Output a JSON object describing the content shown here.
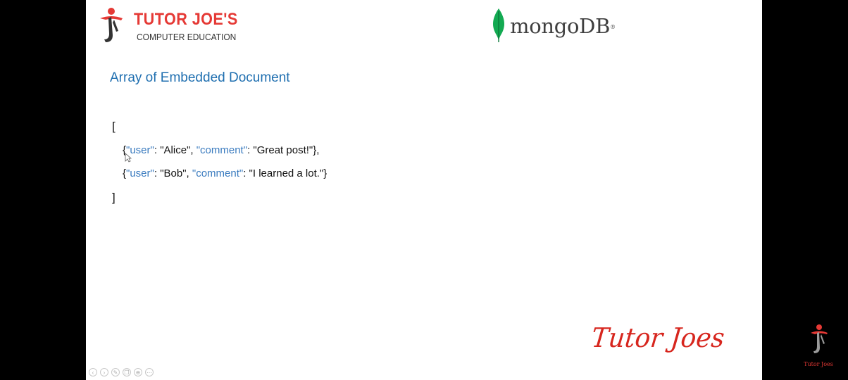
{
  "header": {
    "brand_name": "TUTOR JOE'S",
    "brand_subtitle": "COMPUTER EDUCATION",
    "tech_logo_text": "mongoDB",
    "tech_logo_reg": "®"
  },
  "slide": {
    "title": "Array of Embedded Document",
    "code": {
      "open_bracket": "[",
      "close_bracket": "]",
      "lines": [
        {
          "open": "{",
          "key1": "\"user\"",
          "sep1": ": \"Alice\", ",
          "key2": "\"comment\"",
          "sep2": ": \"Great post!\"},"
        },
        {
          "open": "{",
          "key1": "\"user\"",
          "sep1": ": \"Bob\", ",
          "key2": "\"comment\"",
          "sep2": ": \"I learned a lot.\"}"
        }
      ]
    },
    "signature": "Tutor Joes"
  },
  "nav": {
    "icons": [
      "prev-icon",
      "next-icon",
      "pen-icon",
      "copy-icon",
      "zoom-icon",
      "more-icon"
    ],
    "glyphs": [
      "‹",
      "›",
      "✎",
      "❐",
      "⊕",
      "⋯"
    ]
  },
  "watermark": {
    "text": "Tutor Joes"
  },
  "colors": {
    "brand_red": "#e53935",
    "title_blue": "#1f6fb0",
    "key_blue": "#3a7bbf",
    "mongo_green": "#13aa52"
  }
}
